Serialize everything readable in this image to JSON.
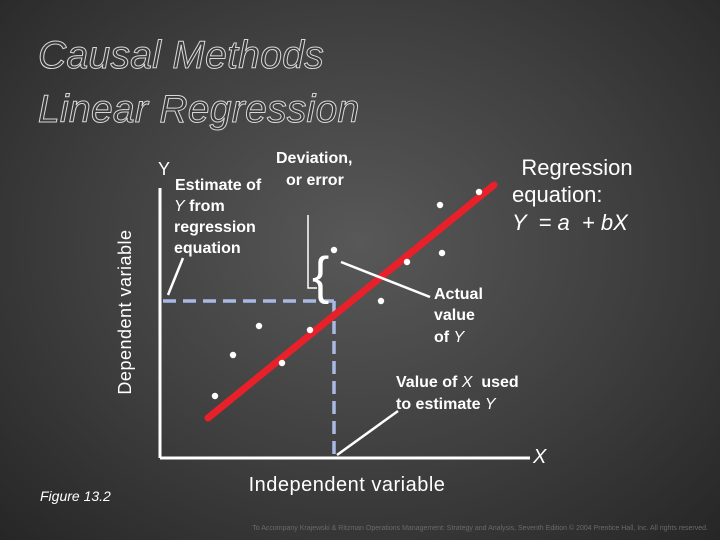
{
  "title": {
    "line1": "Causal Methods",
    "line2": "Linear Regression"
  },
  "axes": {
    "y_letter": "Y",
    "x_letter": "X",
    "y_label": "Dependent variable",
    "x_label": "Independent variable"
  },
  "annotations": {
    "deviation_1": "Deviation,",
    "deviation_2": "or error",
    "estimate_1": "Estimate of",
    "estimate_2_var": "Y",
    "estimate_2_rest": " from",
    "estimate_3": "regression",
    "estimate_4": "equation",
    "equation_1": "Regression",
    "equation_2": "equation:",
    "equation_3": "Y  = a  + bX",
    "actual_1": "Actual",
    "actual_2": "value",
    "actual_3_pre": "of ",
    "actual_3_var": "Y",
    "xused_1_pre": "Value of ",
    "xused_1_var": "X",
    "xused_1_post": "  used",
    "xused_2_pre": "to estimate ",
    "xused_2_var": "Y",
    "brace": "{"
  },
  "figure_label": "Figure 13.2",
  "footer": "To Accompany Krajewski & Ritzman Operations Management: Strategy and Analysis, Seventh Edition © 2004 Prentice Hall, Inc. All rights reserved.",
  "colors": {
    "regression_line": "#e8202a",
    "dashed_guides": "#a9b9e4",
    "axes": "#ffffff",
    "points": "#ffffff"
  }
}
